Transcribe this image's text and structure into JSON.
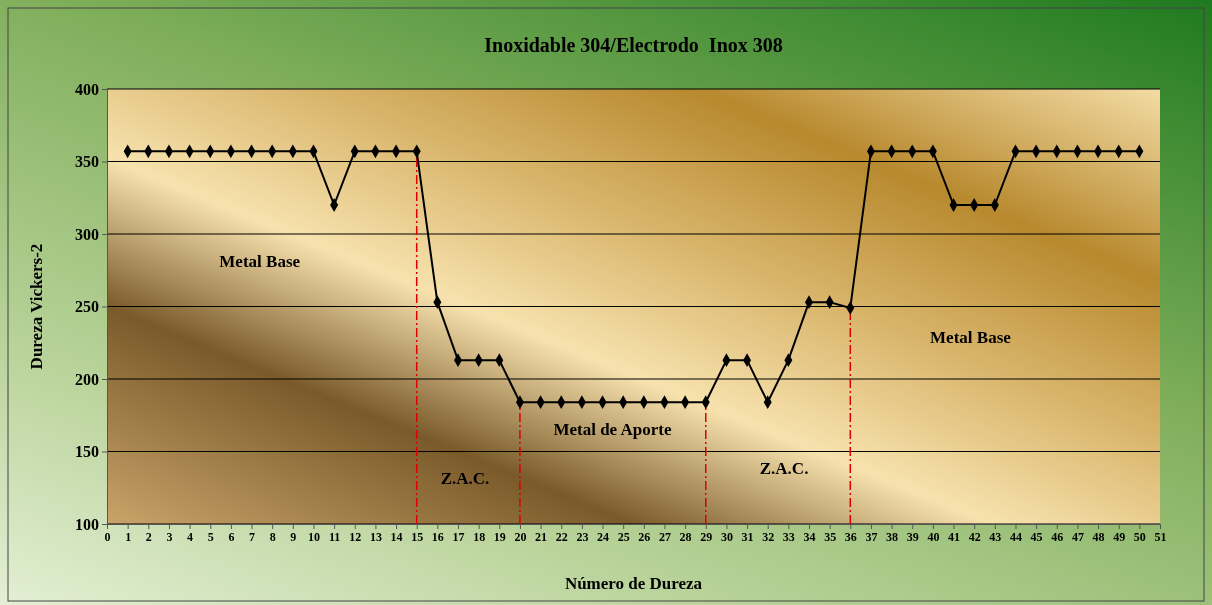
{
  "chart_data": {
    "type": "line",
    "title": "Inoxidable 304/Electrodo  Inox 308",
    "xlabel": "Número de Dureza",
    "ylabel": "Dureza Vickers-2",
    "x": [
      1,
      2,
      3,
      4,
      5,
      6,
      7,
      8,
      9,
      10,
      11,
      12,
      13,
      14,
      15,
      16,
      17,
      18,
      19,
      20,
      21,
      22,
      23,
      24,
      25,
      26,
      27,
      28,
      29,
      30,
      31,
      32,
      33,
      34,
      35,
      36,
      37,
      38,
      39,
      40,
      41,
      42,
      43,
      44,
      45,
      46,
      47,
      48,
      49,
      50
    ],
    "series": [
      {
        "color": "#000000",
        "values": [
          357,
          357,
          357,
          357,
          357,
          357,
          357,
          357,
          357,
          357,
          320,
          357,
          357,
          357,
          357,
          253,
          213,
          213,
          213,
          184,
          184,
          184,
          184,
          184,
          184,
          184,
          184,
          184,
          184,
          213,
          213,
          184,
          213,
          253,
          253,
          249,
          357,
          357,
          357,
          357,
          320,
          320,
          320,
          357,
          357,
          357,
          357,
          357,
          357,
          357
        ]
      }
    ],
    "xlim": [
      0,
      51
    ],
    "xticks": [
      0,
      1,
      2,
      3,
      4,
      5,
      6,
      7,
      8,
      9,
      10,
      11,
      12,
      13,
      14,
      15,
      16,
      17,
      18,
      19,
      20,
      21,
      22,
      23,
      24,
      25,
      26,
      27,
      28,
      29,
      30,
      31,
      32,
      33,
      34,
      35,
      36,
      37,
      38,
      39,
      40,
      41,
      42,
      43,
      44,
      45,
      46,
      47,
      48,
      49,
      50,
      51
    ],
    "ylim": [
      100,
      400
    ],
    "yticks": [
      100,
      150,
      200,
      250,
      300,
      350,
      400
    ],
    "grid": "y",
    "marker": "diamond",
    "line_style": "solid",
    "ref_lines": [
      {
        "axis": "x",
        "value": 15,
        "color": "#e00000",
        "line_style": "dashdot"
      },
      {
        "axis": "x",
        "value": 20,
        "color": "#e00000",
        "line_style": "dashdot"
      },
      {
        "axis": "x",
        "value": 29,
        "color": "#e00000",
        "line_style": "dashdot"
      },
      {
        "axis": "x",
        "value": 36,
        "color": "#e00000",
        "line_style": "dashdot"
      }
    ],
    "annotations": [
      "Metal Base",
      "Metal Base",
      "Metal de Aporte",
      "Z.A.C.",
      "Z.A.C."
    ]
  }
}
